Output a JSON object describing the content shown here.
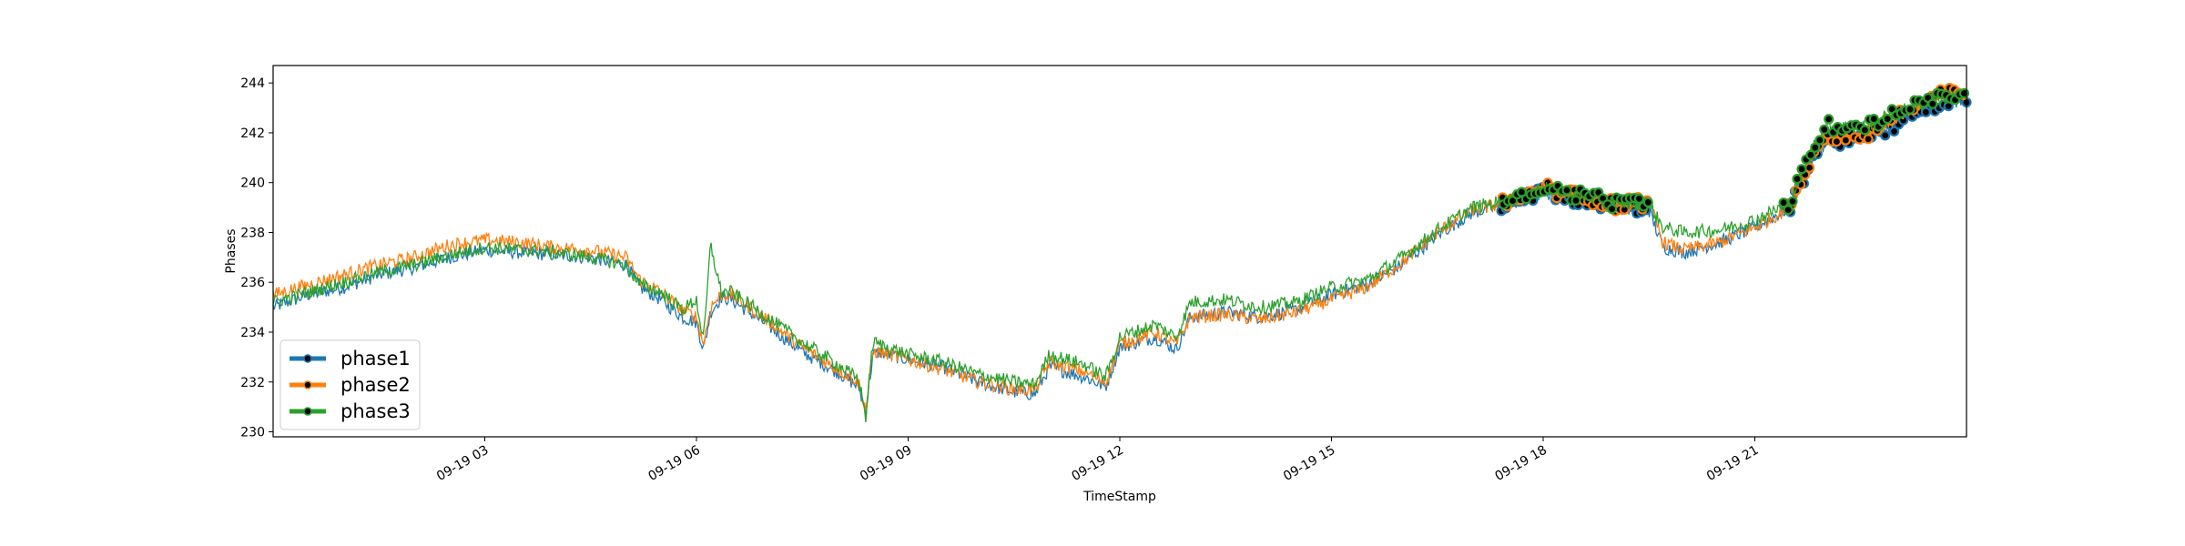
{
  "chart_data": {
    "type": "line",
    "title": "",
    "xlabel": "TimeStamp",
    "ylabel": "Phases",
    "x_unit": "hours of 09-19",
    "xlim": [
      0,
      24
    ],
    "ylim": [
      229.8,
      244.7
    ],
    "x_ticks": [
      {
        "value": 3,
        "label": "09-19 03"
      },
      {
        "value": 6,
        "label": "09-19 06"
      },
      {
        "value": 9,
        "label": "09-19 09"
      },
      {
        "value": 12,
        "label": "09-19 12"
      },
      {
        "value": 15,
        "label": "09-19 15"
      },
      {
        "value": 18,
        "label": "09-19 18"
      },
      {
        "value": 21,
        "label": "09-19 21"
      }
    ],
    "y_ticks": [
      230,
      232,
      234,
      236,
      238,
      240,
      242,
      244
    ],
    "legend_position": "lower-left",
    "grid": false,
    "marker_ranges": [
      [
        17.4,
        19.5
      ],
      [
        21.4,
        24.0
      ]
    ],
    "x": [
      0,
      0.5,
      1,
      1.5,
      2,
      2.5,
      3,
      3.5,
      4,
      4.5,
      5,
      5.2,
      5.5,
      5.8,
      6.0,
      6.1,
      6.2,
      6.35,
      6.5,
      7,
      7.5,
      8,
      8.3,
      8.4,
      8.5,
      8.6,
      9,
      9.5,
      10,
      10.5,
      10.8,
      11,
      11.5,
      11.8,
      12,
      12.5,
      12.8,
      13,
      13.5,
      14,
      14.5,
      15,
      15.5,
      16,
      16.5,
      17,
      17.5,
      18,
      18.5,
      19,
      19.5,
      19.7,
      20,
      20.5,
      21,
      21.5,
      21.8,
      22,
      22.5,
      23,
      23.5,
      24
    ],
    "series": [
      {
        "name": "phase1",
        "color": "#1f77b4",
        "values": [
          235.0,
          235.5,
          235.8,
          236.3,
          236.6,
          237.0,
          237.3,
          237.2,
          237.1,
          237.0,
          236.7,
          235.8,
          235.3,
          234.6,
          234.4,
          233.3,
          234.8,
          235.4,
          235.3,
          234.3,
          233.2,
          232.4,
          231.8,
          230.8,
          233.1,
          233.2,
          232.9,
          232.6,
          232.0,
          231.6,
          231.5,
          232.6,
          232.2,
          231.8,
          233.4,
          233.8,
          233.3,
          234.6,
          234.8,
          234.6,
          234.9,
          235.5,
          235.9,
          236.7,
          237.9,
          238.8,
          239.1,
          239.6,
          239.3,
          239.0,
          238.9,
          237.4,
          237.2,
          237.6,
          238.2,
          239.0,
          240.8,
          241.6,
          241.7,
          242.3,
          243.0,
          243.4
        ]
      },
      {
        "name": "phase2",
        "color": "#ff7f0e",
        "values": [
          235.5,
          235.9,
          236.3,
          236.7,
          237.0,
          237.5,
          237.7,
          237.6,
          237.4,
          237.3,
          237.0,
          236.1,
          235.6,
          234.9,
          234.6,
          233.5,
          235.0,
          235.5,
          235.5,
          234.5,
          233.4,
          232.5,
          232.0,
          230.9,
          233.2,
          233.2,
          232.9,
          232.5,
          232.0,
          231.7,
          231.7,
          232.8,
          232.4,
          232.0,
          233.5,
          234.0,
          233.5,
          234.6,
          234.7,
          234.5,
          234.8,
          235.3,
          235.8,
          236.8,
          238.0,
          238.9,
          239.2,
          239.8,
          239.4,
          239.1,
          239.2,
          237.6,
          237.3,
          237.6,
          238.2,
          239.0,
          241.0,
          241.9,
          241.8,
          242.6,
          243.4,
          243.7
        ]
      },
      {
        "name": "phase3",
        "color": "#2ca02c",
        "values": [
          235.2,
          235.6,
          236.0,
          236.4,
          236.7,
          237.1,
          237.4,
          237.3,
          237.2,
          237.0,
          236.7,
          235.9,
          235.6,
          234.9,
          235.3,
          233.6,
          237.5,
          235.6,
          235.6,
          234.6,
          233.6,
          232.7,
          232.1,
          230.6,
          233.6,
          233.5,
          233.1,
          232.8,
          232.3,
          232.0,
          231.9,
          233.1,
          232.7,
          232.2,
          233.8,
          234.3,
          233.8,
          235.2,
          235.3,
          235.0,
          235.2,
          235.8,
          236.1,
          237.0,
          238.1,
          239.0,
          239.3,
          239.8,
          239.5,
          239.2,
          239.1,
          238.2,
          238.0,
          238.1,
          238.5,
          239.2,
          241.3,
          242.3,
          242.2,
          242.8,
          243.3,
          243.5
        ]
      }
    ]
  }
}
